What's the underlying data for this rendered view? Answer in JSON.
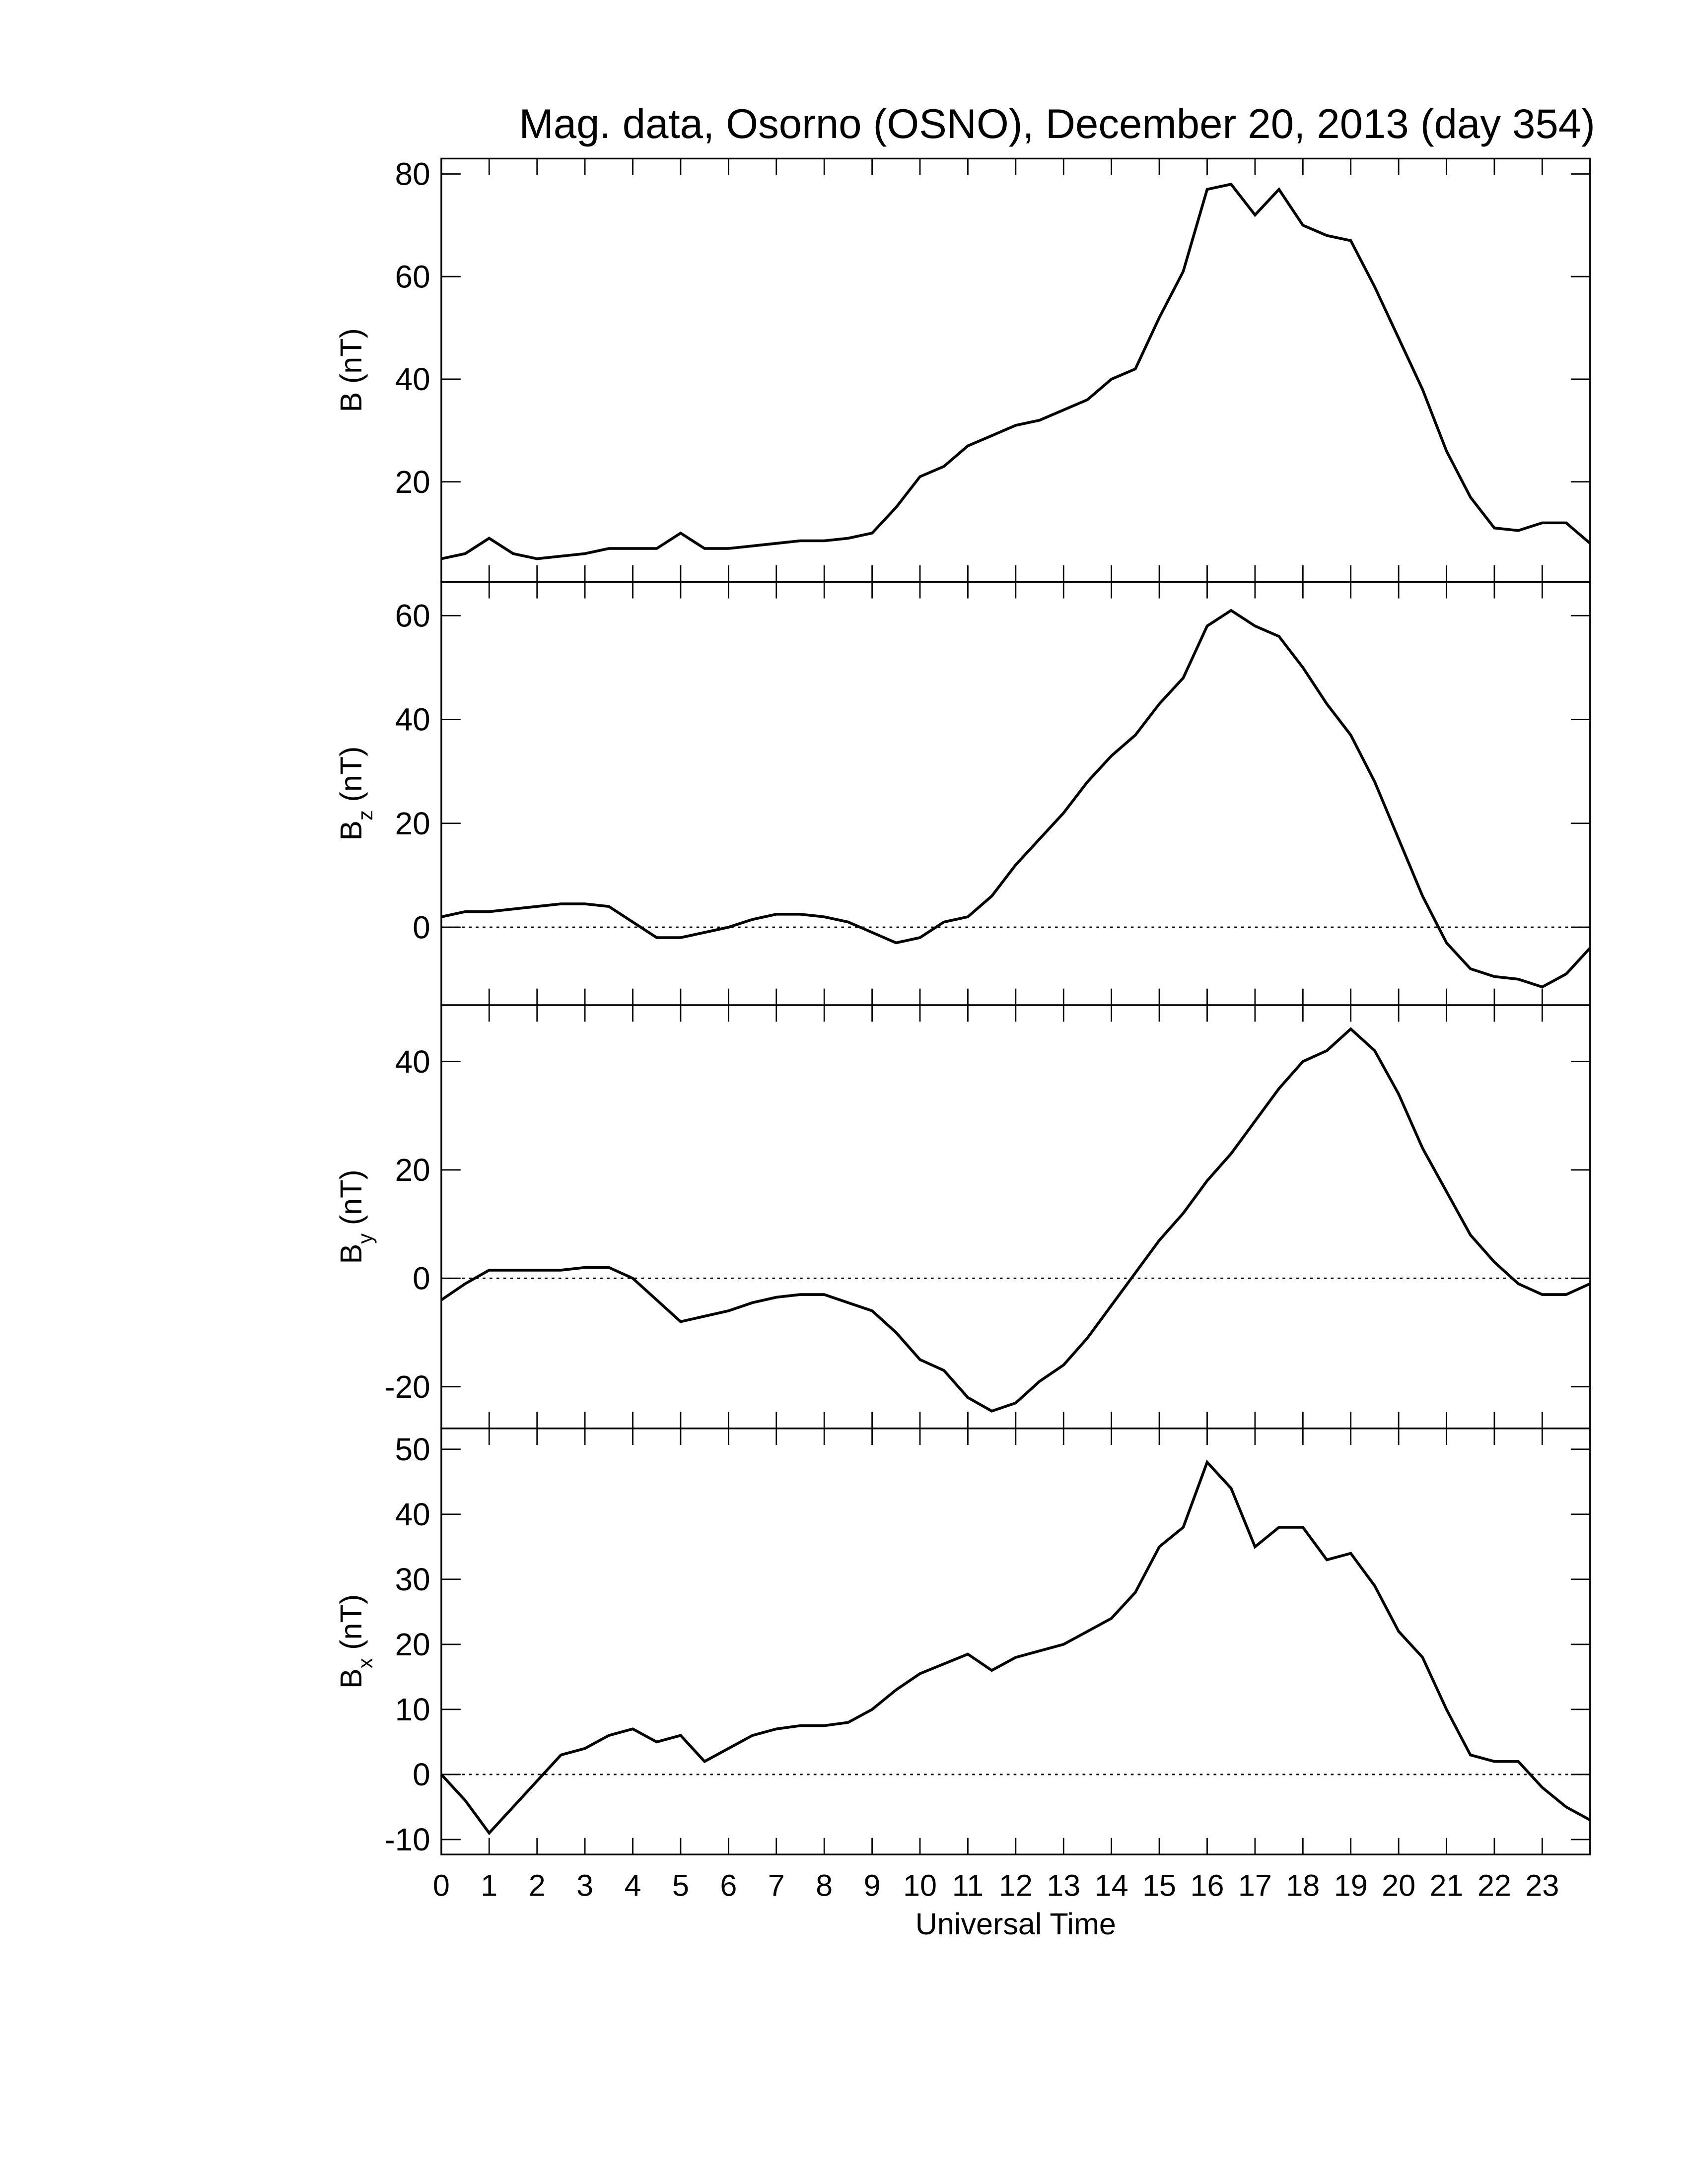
{
  "chart_data": [
    {
      "type": "line",
      "title": "Mag. data, Osorno (OSNO), December 20, 2013 (day 354)",
      "y_label_symbol": "B",
      "y_label_unit": "(nT)",
      "color": "#000000",
      "zero_line": false,
      "x": [
        0,
        0.5,
        1,
        1.5,
        2,
        2.5,
        3,
        3.5,
        4,
        4.5,
        5,
        5.5,
        6,
        6.5,
        7,
        7.5,
        8,
        8.5,
        9,
        9.5,
        10,
        10.5,
        11,
        11.5,
        12,
        12.5,
        13,
        13.5,
        14,
        14.5,
        15,
        15.5,
        16,
        16.5,
        17,
        17.5,
        18,
        18.5,
        19,
        19.5,
        20,
        20.5,
        21,
        21.5,
        22,
        22.5,
        23,
        23.5,
        24
      ],
      "values": [
        5,
        6,
        9,
        6,
        5,
        5.5,
        6,
        7,
        7,
        7,
        10,
        7,
        7,
        7.5,
        8,
        8.5,
        8.5,
        9,
        10,
        15,
        21,
        23,
        27,
        29,
        31,
        32,
        34,
        36,
        40,
        42,
        52,
        61,
        77,
        78,
        72,
        77,
        70,
        68,
        67,
        58,
        48,
        38,
        26,
        17,
        11,
        10.5,
        12,
        12,
        8
      ],
      "xlim": [
        0,
        24
      ],
      "ylim": [
        0.5,
        83
      ],
      "yticks": [
        20,
        40,
        60,
        80
      ],
      "xticks": [
        {
          "value": 0,
          "label": "00"
        },
        {
          "value": 1,
          "label": "01"
        },
        {
          "value": 2,
          "label": "02"
        },
        {
          "value": 3,
          "label": "03"
        },
        {
          "value": 4,
          "label": "04"
        },
        {
          "value": 5,
          "label": "05"
        },
        {
          "value": 6,
          "label": "06"
        },
        {
          "value": 7,
          "label": "07"
        },
        {
          "value": 8,
          "label": "08"
        },
        {
          "value": 9,
          "label": "09"
        },
        {
          "value": 10,
          "label": "10"
        },
        {
          "value": 11,
          "label": "11"
        },
        {
          "value": 12,
          "label": "12"
        },
        {
          "value": 13,
          "label": "13"
        },
        {
          "value": 14,
          "label": "14"
        },
        {
          "value": 15,
          "label": "15"
        },
        {
          "value": 16,
          "label": "16"
        },
        {
          "value": 17,
          "label": "17"
        },
        {
          "value": 18,
          "label": "18"
        },
        {
          "value": 19,
          "label": "19"
        },
        {
          "value": 20,
          "label": "20"
        },
        {
          "value": 21,
          "label": "21"
        },
        {
          "value": 22,
          "label": "22"
        },
        {
          "value": 23,
          "label": "23"
        }
      ]
    },
    {
      "type": "line",
      "y_label_symbol": "B",
      "y_label_subscript": "z",
      "y_label_unit": "(nT)",
      "color": "#000000",
      "zero_line": true,
      "x": [
        0,
        0.5,
        1,
        1.5,
        2,
        2.5,
        3,
        3.5,
        4,
        4.5,
        5,
        5.5,
        6,
        6.5,
        7,
        7.5,
        8,
        8.5,
        9,
        9.5,
        10,
        10.5,
        11,
        11.5,
        12,
        12.5,
        13,
        13.5,
        14,
        14.5,
        15,
        15.5,
        16,
        16.5,
        17,
        17.5,
        18,
        18.5,
        19,
        19.5,
        20,
        20.5,
        21,
        21.5,
        22,
        22.5,
        23,
        23.5,
        24
      ],
      "values": [
        2,
        3,
        3,
        3.5,
        4,
        4.5,
        4.5,
        4,
        1,
        -2,
        -2,
        -1,
        0,
        1.5,
        2.5,
        2.5,
        2,
        1,
        -1,
        -3,
        -2,
        1,
        2,
        6,
        12,
        17,
        22,
        28,
        33,
        37,
        43,
        48,
        58,
        61,
        58,
        56,
        50,
        43,
        37,
        28,
        17,
        6,
        -3,
        -8,
        -9.5,
        -10,
        -11.5,
        -9,
        -4
      ],
      "xlim": [
        0,
        24
      ],
      "ylim": [
        -15,
        66.5
      ],
      "yticks": [
        0,
        20,
        40,
        60
      ],
      "xticks": [
        0,
        1,
        2,
        3,
        4,
        5,
        6,
        7,
        8,
        9,
        10,
        11,
        12,
        13,
        14,
        15,
        16,
        17,
        18,
        19,
        20,
        21,
        22,
        23
      ]
    },
    {
      "type": "line",
      "y_label_symbol": "B",
      "y_label_subscript": "y",
      "y_label_unit": "(nT)",
      "color": "#000000",
      "zero_line": true,
      "x": [
        0,
        0.5,
        1,
        1.5,
        2,
        2.5,
        3,
        3.5,
        4,
        4.5,
        5,
        5.5,
        6,
        6.5,
        7,
        7.5,
        8,
        8.5,
        9,
        9.5,
        10,
        10.5,
        11,
        11.5,
        12,
        12.5,
        13,
        13.5,
        14,
        14.5,
        15,
        15.5,
        16,
        16.5,
        17,
        17.5,
        18,
        18.5,
        19,
        19.5,
        20,
        20.5,
        21,
        21.5,
        22,
        22.5,
        23,
        23.5,
        24
      ],
      "values": [
        -4,
        -1,
        1.5,
        1.5,
        1.5,
        1.5,
        2,
        2,
        0,
        -4,
        -8,
        -7,
        -6,
        -4.5,
        -3.5,
        -3,
        -3,
        -4.5,
        -6,
        -10,
        -15,
        -17,
        -22,
        -24.5,
        -23,
        -19,
        -16,
        -11,
        -5,
        1,
        7,
        12,
        18,
        23,
        29,
        35,
        40,
        42,
        46,
        42,
        34,
        24,
        16,
        8,
        3,
        -1,
        -3,
        -3,
        -1
      ],
      "xlim": [
        0,
        24
      ],
      "ylim": [
        -27.7,
        50.4
      ],
      "yticks": [
        -20,
        0,
        20,
        40
      ],
      "xticks": [
        0,
        1,
        2,
        3,
        4,
        5,
        6,
        7,
        8,
        9,
        10,
        11,
        12,
        13,
        14,
        15,
        16,
        17,
        18,
        19,
        20,
        21,
        22,
        23
      ]
    },
    {
      "type": "line",
      "y_label_symbol": "B",
      "y_label_subscript": "x",
      "y_label_unit": "(nT)",
      "x_label": "Universal Time",
      "color": "#000000",
      "zero_line": true,
      "x": [
        0,
        0.5,
        1,
        1.5,
        2,
        2.5,
        3,
        3.5,
        4,
        4.5,
        5,
        5.5,
        6,
        6.5,
        7,
        7.5,
        8,
        8.5,
        9,
        9.5,
        10,
        10.5,
        11,
        11.5,
        12,
        12.5,
        13,
        13.5,
        14,
        14.5,
        15,
        15.5,
        16,
        16.5,
        17,
        17.5,
        18,
        18.5,
        19,
        19.5,
        20,
        20.5,
        21,
        21.5,
        22,
        22.5,
        23,
        23.5,
        24
      ],
      "values": [
        0,
        -4,
        -9,
        -5,
        -1,
        3,
        4,
        6,
        7,
        5,
        6,
        2,
        4,
        6,
        7,
        7.5,
        7.5,
        8,
        10,
        13,
        15.5,
        17,
        18.5,
        16,
        18,
        19,
        20,
        22,
        24,
        28,
        35,
        38,
        48,
        44,
        35,
        38,
        38,
        33,
        34,
        29,
        22,
        18,
        10,
        3,
        2,
        2,
        -2,
        -5,
        -7
      ],
      "xlim": [
        0,
        24
      ],
      "ylim": [
        -12.3,
        53.2
      ],
      "yticks": [
        -10,
        0,
        10,
        20,
        30,
        40,
        50
      ],
      "xticks": [
        0,
        1,
        2,
        3,
        4,
        5,
        6,
        7,
        8,
        9,
        10,
        11,
        12,
        13,
        14,
        15,
        16,
        17,
        18,
        19,
        20,
        21,
        22,
        23
      ]
    }
  ]
}
